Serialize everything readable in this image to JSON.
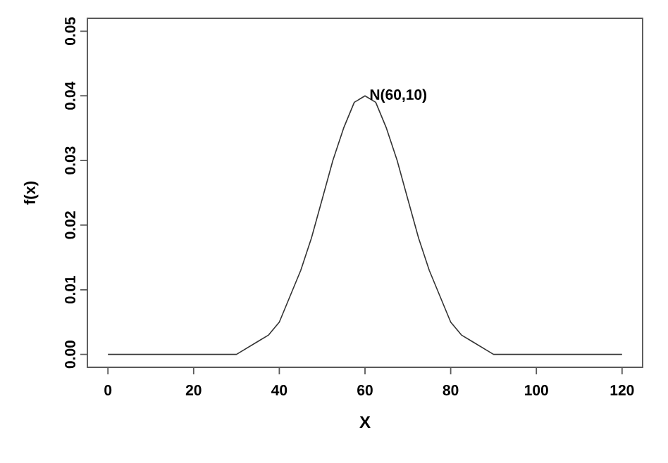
{
  "chart_data": {
    "type": "line",
    "xlabel": "X",
    "ylabel": "f(x)",
    "x": [
      0,
      10,
      20,
      25,
      30,
      35,
      37.5,
      40,
      42.5,
      45,
      47.5,
      50,
      52.5,
      55,
      57.5,
      60,
      62.5,
      65,
      67.5,
      70,
      72.5,
      75,
      77.5,
      80,
      82.5,
      85,
      90,
      100,
      110,
      120
    ],
    "series": [
      {
        "color": "#333333",
        "values": [
          0,
          0,
          0,
          0,
          0,
          0.002,
          0.003,
          0.005,
          0.009,
          0.013,
          0.018,
          0.024,
          0.03,
          0.035,
          0.039,
          0.04,
          0.039,
          0.035,
          0.03,
          0.024,
          0.018,
          0.013,
          0.009,
          0.005,
          0.003,
          0.002,
          0,
          0,
          0,
          0
        ]
      }
    ],
    "xlim": [
      -4.8,
      124.8
    ],
    "ylim": [
      -0.002,
      0.052
    ],
    "xticks": [
      0,
      20,
      40,
      60,
      80,
      100,
      120
    ],
    "yticks": [
      {
        "value": 0,
        "label": "0.00"
      },
      {
        "value": 0.01,
        "label": "0.01"
      },
      {
        "value": 0.02,
        "label": "0.02"
      },
      {
        "value": 0.03,
        "label": "0.03"
      },
      {
        "value": 0.04,
        "label": "0.04"
      },
      {
        "value": 0.05,
        "label": "0.05"
      }
    ],
    "annotations": [
      {
        "text": "N(60,10)",
        "x": 60,
        "y": 0.04
      }
    ],
    "grid": false,
    "marker": "none",
    "line_style": "solid"
  }
}
